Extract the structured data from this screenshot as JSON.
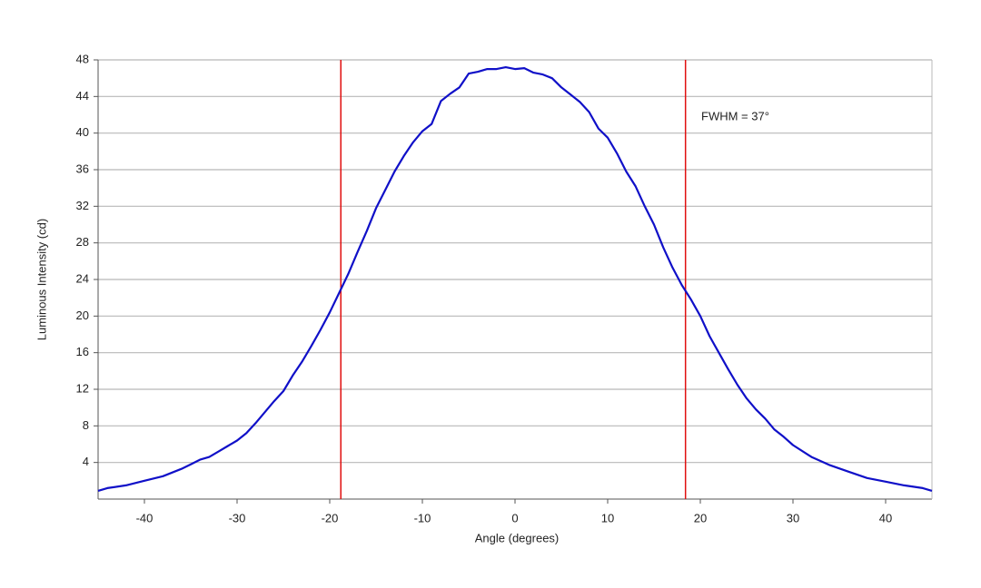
{
  "chart_data": {
    "type": "line",
    "xlabel": "Angle (degrees)",
    "ylabel": "Luminous Intensity (cd)",
    "x": [
      -45,
      -44,
      -42,
      -40,
      -38,
      -36,
      -35,
      -34,
      -33,
      -32,
      -31,
      -30,
      -29,
      -28,
      -27,
      -26,
      -25,
      -24,
      -23,
      -22,
      -21,
      -20,
      -19,
      -18,
      -17,
      -16,
      -15,
      -14,
      -13,
      -12,
      -11,
      -10,
      -9,
      -8,
      -7,
      -6,
      -5,
      -4,
      -3,
      -2,
      -1,
      0,
      1,
      2,
      3,
      4,
      5,
      6,
      7,
      8,
      9,
      10,
      11,
      12,
      13,
      14,
      15,
      16,
      17,
      18,
      19,
      20,
      21,
      22,
      23,
      24,
      25,
      26,
      27,
      28,
      29,
      30,
      32,
      34,
      36,
      38,
      40,
      42,
      44,
      45
    ],
    "series": [
      {
        "name": "Luminous Intensity",
        "color": "#1010c8",
        "values": [
          0.9,
          1.2,
          1.5,
          2.0,
          2.5,
          3.3,
          3.8,
          4.3,
          4.6,
          5.2,
          5.8,
          6.4,
          7.2,
          8.3,
          9.5,
          10.7,
          11.8,
          13.5,
          15.0,
          16.7,
          18.5,
          20.4,
          22.5,
          24.6,
          27.0,
          29.3,
          31.8,
          33.8,
          35.8,
          37.5,
          39.0,
          40.2,
          41.0,
          43.5,
          44.3,
          45.0,
          46.5,
          46.7,
          47.0,
          47.0,
          47.2,
          47.0,
          47.1,
          46.6,
          46.4,
          46.0,
          45.0,
          44.2,
          43.4,
          42.3,
          40.5,
          39.5,
          37.8,
          35.8,
          34.2,
          32.0,
          30.0,
          27.5,
          25.3,
          23.4,
          21.8,
          20.0,
          17.8,
          16.0,
          14.2,
          12.5,
          11.0,
          9.8,
          8.8,
          7.6,
          6.8,
          5.9,
          4.6,
          3.7,
          3.0,
          2.3,
          1.9,
          1.5,
          1.2,
          0.9
        ]
      }
    ],
    "xlim": [
      -45,
      45
    ],
    "xticks": [
      -40,
      -30,
      -20,
      -10,
      0,
      10,
      20,
      30,
      40
    ],
    "ylim": [
      0,
      48
    ],
    "yticks": [
      4,
      8,
      12,
      16,
      20,
      24,
      28,
      32,
      36,
      40,
      44,
      48
    ],
    "grid": true,
    "vlines": [
      {
        "x": -18.8,
        "color": "#e01010"
      },
      {
        "x": 18.4,
        "color": "#e01010"
      }
    ],
    "annotation": "FWHM = 37°"
  }
}
